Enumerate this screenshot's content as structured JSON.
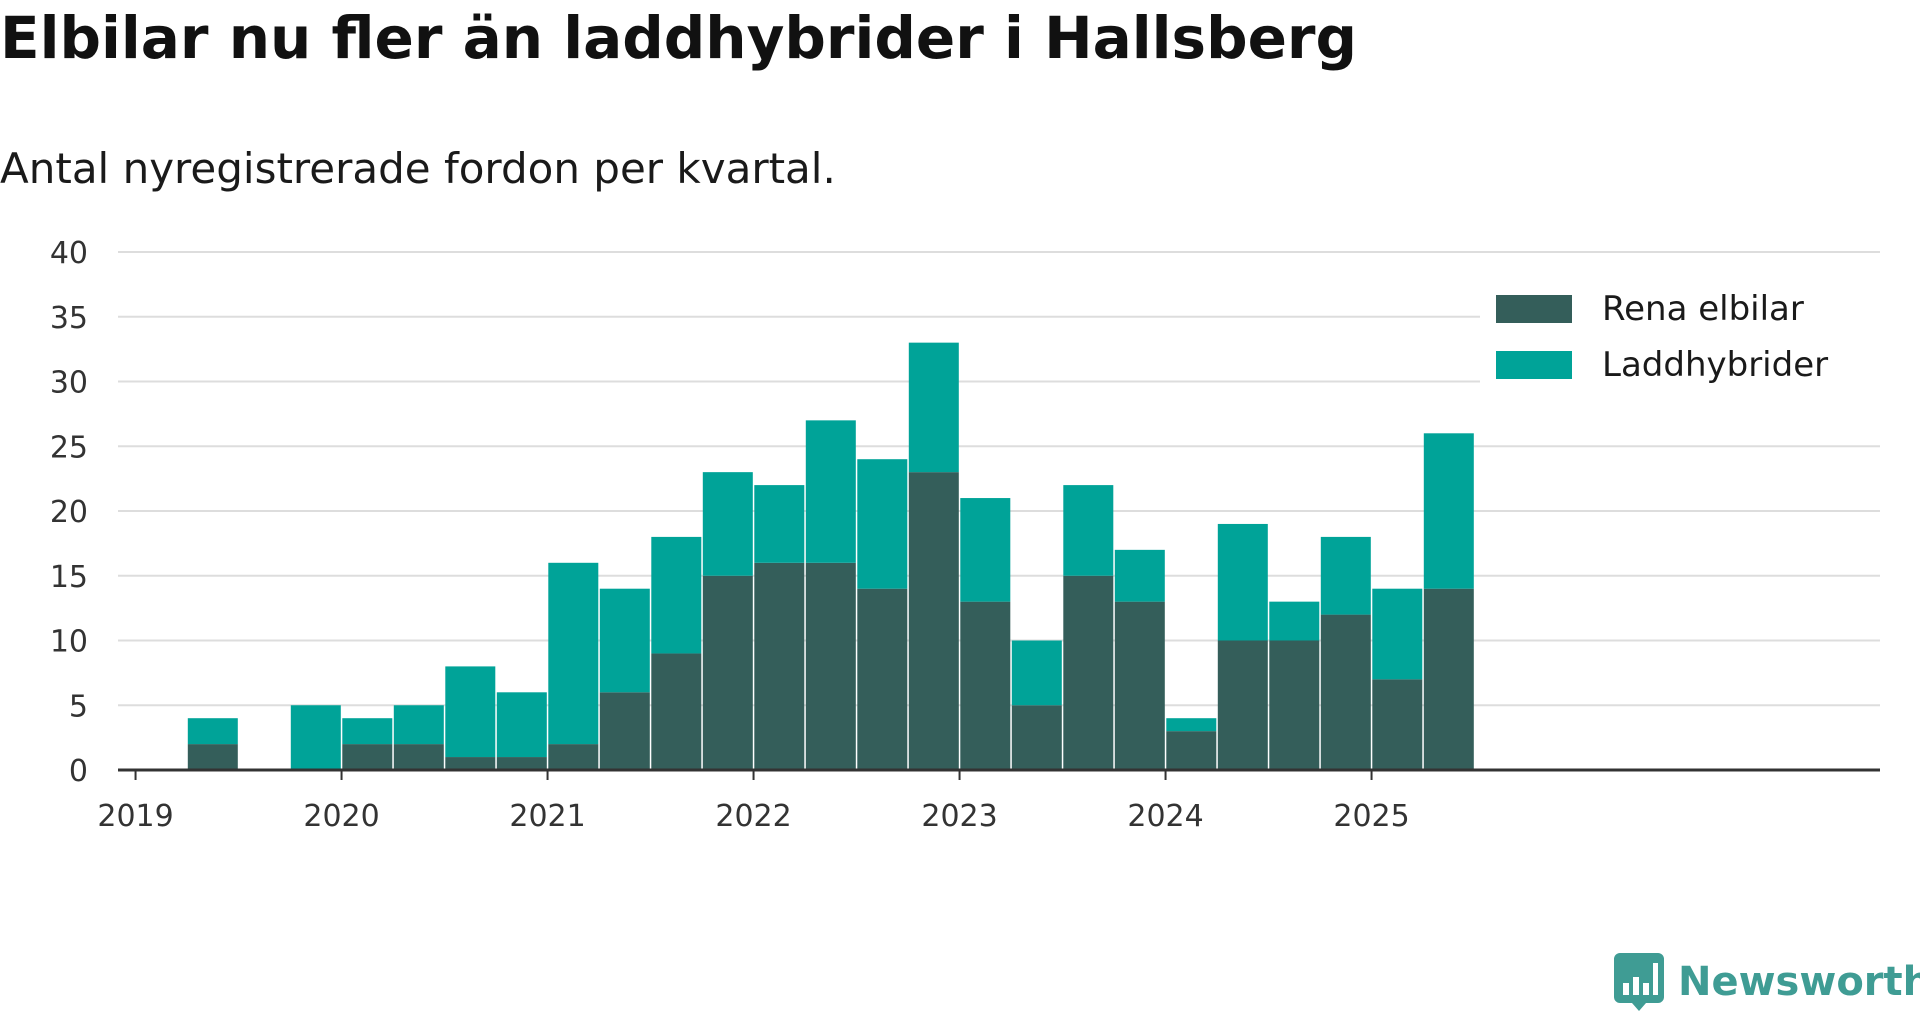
{
  "header": {
    "title": "Elbilar nu fler än laddhybrider i Hallsberg",
    "subtitle": "Antal nyregistrerade fordon per kvartal."
  },
  "brand": {
    "name": "Newsworthy",
    "icon": "newsworthy-logo-icon"
  },
  "colors": {
    "rena_elbilar": "#345e5a",
    "laddhybrider": "#00a398",
    "grid": "#dddddd",
    "axis": "#333333"
  },
  "chart_data": {
    "type": "bar",
    "stacked": true,
    "title": "Elbilar nu fler än laddhybrider i Hallsberg",
    "subtitle": "Antal nyregistrerade fordon per kvartal.",
    "xlabel": "",
    "ylabel": "",
    "ylim": [
      0,
      40
    ],
    "yticks": [
      0,
      5,
      10,
      15,
      20,
      25,
      30,
      35,
      40
    ],
    "xticks": [
      "2019",
      "2020",
      "2021",
      "2022",
      "2023",
      "2024",
      "2025"
    ],
    "grid": true,
    "legend_position": "top-right",
    "categories": [
      "2019 Q1",
      "2019 Q2",
      "2019 Q3",
      "2019 Q4",
      "2020 Q1",
      "2020 Q2",
      "2020 Q3",
      "2020 Q4",
      "2021 Q1",
      "2021 Q2",
      "2021 Q3",
      "2021 Q4",
      "2022 Q1",
      "2022 Q2",
      "2022 Q3",
      "2022 Q4",
      "2023 Q1",
      "2023 Q2",
      "2023 Q3",
      "2023 Q4",
      "2024 Q1",
      "2024 Q2",
      "2024 Q3",
      "2024 Q4",
      "2025 Q1",
      "2025 Q2"
    ],
    "series": [
      {
        "name": "Rena elbilar",
        "color": "#345e5a",
        "values": [
          0,
          2,
          0,
          0,
          2,
          2,
          1,
          1,
          2,
          6,
          9,
          15,
          16,
          16,
          14,
          23,
          13,
          5,
          15,
          13,
          3,
          10,
          10,
          12,
          7,
          14
        ]
      },
      {
        "name": "Laddhybrider",
        "color": "#00a398",
        "values": [
          0,
          2,
          0,
          5,
          2,
          3,
          7,
          5,
          14,
          8,
          9,
          8,
          6,
          11,
          10,
          10,
          8,
          5,
          7,
          4,
          1,
          9,
          3,
          6,
          7,
          12
        ]
      }
    ]
  }
}
